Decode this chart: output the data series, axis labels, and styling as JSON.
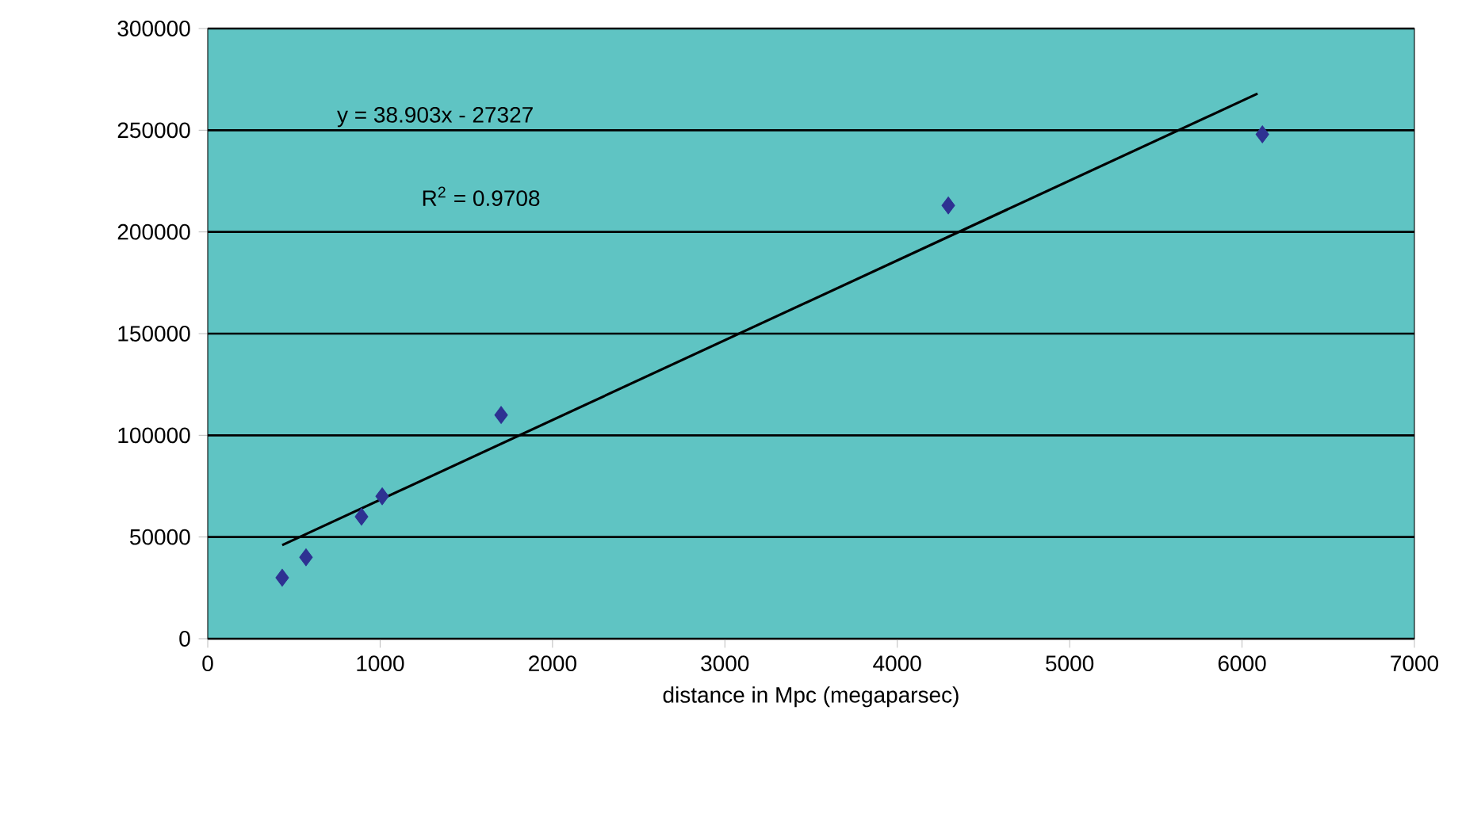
{
  "chart_data": {
    "type": "scatter",
    "xlabel": "distance in Mpc (megaparsec)",
    "xlim": [
      0,
      7000
    ],
    "xticks": [
      0,
      1000,
      2000,
      3000,
      4000,
      5000,
      6000,
      7000
    ],
    "ylim": [
      0,
      300000
    ],
    "yticks": [
      0,
      50000,
      100000,
      150000,
      200000,
      250000,
      300000
    ],
    "grid": "y",
    "marker": "diamond",
    "series": [
      {
        "color": "#2e3192",
        "x": [
          432,
          570,
          892,
          1012,
          1702,
          4296,
          6118
        ],
        "values": [
          30000,
          40000,
          60000,
          70000,
          110000,
          213000,
          248000
        ]
      },
      {
        "type": "line",
        "color": "#000000",
        "marker": "none",
        "x": [
          432,
          6090
        ],
        "values": [
          46000,
          268000
        ]
      }
    ],
    "annotations": [
      "y = 38.903x - 27327",
      "R$^{2}$ = 0.9708"
    ]
  }
}
